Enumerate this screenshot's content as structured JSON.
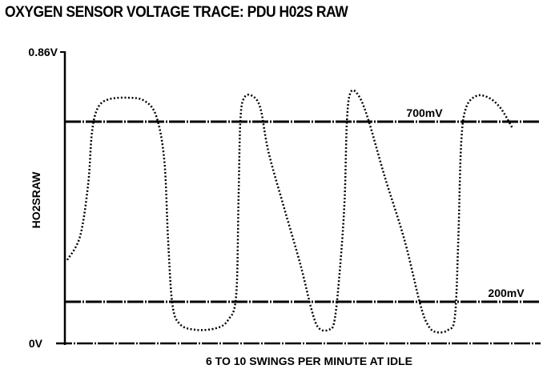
{
  "chart_data": {
    "type": "line",
    "title": "OXYGEN SENSOR VOLTAGE TRACE: PDU H02S RAW",
    "xlabel": "6 TO 10 SWINGS PER MINUTE AT IDLE",
    "ylabel": "HO2SRAW",
    "y_ticks": [
      {
        "value": 0,
        "label": "0V"
      },
      {
        "value": 0.86,
        "label": "0.86V"
      }
    ],
    "ylim": [
      0,
      0.86
    ],
    "reference_lines": [
      {
        "value": 0.7,
        "label": "700mV"
      },
      {
        "value": 0.2,
        "label": "200mV"
      }
    ],
    "grid": false,
    "line_style": "dotted",
    "color": "#000000",
    "series": [
      {
        "x": [
          0.5,
          3.2,
          4.9,
          5.7,
          6.9,
          9.1,
          13.3,
          16.7,
          19.2,
          20.9,
          21.7,
          22.6,
          24.2,
          27.6,
          31.8,
          34.3,
          36,
          36.5,
          36.9,
          37.7,
          39.4,
          41.1,
          42.8,
          46.1,
          49.5,
          52,
          53.4,
          55.4,
          56.7,
          57.9,
          58.8,
          59.3,
          60.1,
          61.8,
          63.8,
          67.2,
          71.4,
          74.7,
          76.4,
          78.1,
          80.6,
          82,
          82.7,
          83.3,
          84.3,
          86.5,
          89.1,
          91.6,
          94.1
        ],
        "y": [
          0.316,
          0.382,
          0.527,
          0.671,
          0.731,
          0.751,
          0.755,
          0.748,
          0.713,
          0.593,
          0.371,
          0.188,
          0.092,
          0.065,
          0.073,
          0.112,
          0.216,
          0.482,
          0.704,
          0.755,
          0.759,
          0.731,
          0.616,
          0.46,
          0.304,
          0.15,
          0.073,
          0.065,
          0.112,
          0.304,
          0.482,
          0.704,
          0.768,
          0.759,
          0.704,
          0.549,
          0.371,
          0.188,
          0.085,
          0.054,
          0.065,
          0.131,
          0.371,
          0.638,
          0.731,
          0.759,
          0.755,
          0.731,
          0.682
        ]
      }
    ]
  }
}
